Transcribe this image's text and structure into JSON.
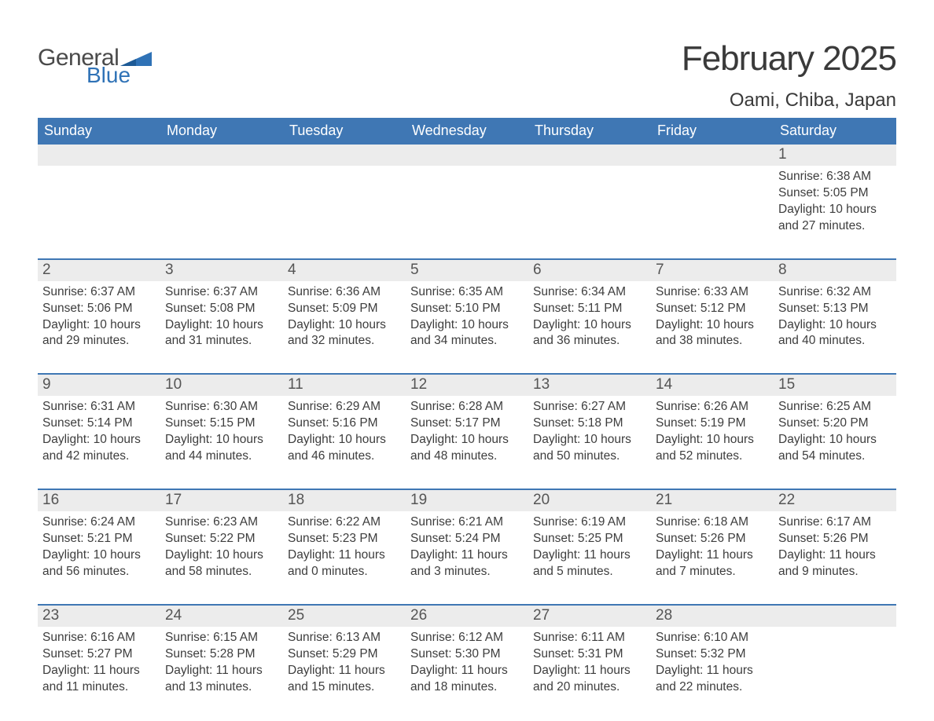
{
  "logo": {
    "general": "General",
    "blue": "Blue",
    "flag_color": "#2f72b6"
  },
  "title": "February 2025",
  "location": "Oami, Chiba, Japan",
  "colors": {
    "header_bg": "#3f77b4",
    "header_text": "#ffffff",
    "daynum_bg": "#ececec",
    "week_border": "#3f77b4",
    "text": "#3a3a3a"
  },
  "day_names": [
    "Sunday",
    "Monday",
    "Tuesday",
    "Wednesday",
    "Thursday",
    "Friday",
    "Saturday"
  ],
  "weeks": [
    [
      null,
      null,
      null,
      null,
      null,
      null,
      {
        "n": "1",
        "sunrise": "6:38 AM",
        "sunset": "5:05 PM",
        "dl1": "Daylight: 10 hours",
        "dl2": "and 27 minutes."
      }
    ],
    [
      {
        "n": "2",
        "sunrise": "6:37 AM",
        "sunset": "5:06 PM",
        "dl1": "Daylight: 10 hours",
        "dl2": "and 29 minutes."
      },
      {
        "n": "3",
        "sunrise": "6:37 AM",
        "sunset": "5:08 PM",
        "dl1": "Daylight: 10 hours",
        "dl2": "and 31 minutes."
      },
      {
        "n": "4",
        "sunrise": "6:36 AM",
        "sunset": "5:09 PM",
        "dl1": "Daylight: 10 hours",
        "dl2": "and 32 minutes."
      },
      {
        "n": "5",
        "sunrise": "6:35 AM",
        "sunset": "5:10 PM",
        "dl1": "Daylight: 10 hours",
        "dl2": "and 34 minutes."
      },
      {
        "n": "6",
        "sunrise": "6:34 AM",
        "sunset": "5:11 PM",
        "dl1": "Daylight: 10 hours",
        "dl2": "and 36 minutes."
      },
      {
        "n": "7",
        "sunrise": "6:33 AM",
        "sunset": "5:12 PM",
        "dl1": "Daylight: 10 hours",
        "dl2": "and 38 minutes."
      },
      {
        "n": "8",
        "sunrise": "6:32 AM",
        "sunset": "5:13 PM",
        "dl1": "Daylight: 10 hours",
        "dl2": "and 40 minutes."
      }
    ],
    [
      {
        "n": "9",
        "sunrise": "6:31 AM",
        "sunset": "5:14 PM",
        "dl1": "Daylight: 10 hours",
        "dl2": "and 42 minutes."
      },
      {
        "n": "10",
        "sunrise": "6:30 AM",
        "sunset": "5:15 PM",
        "dl1": "Daylight: 10 hours",
        "dl2": "and 44 minutes."
      },
      {
        "n": "11",
        "sunrise": "6:29 AM",
        "sunset": "5:16 PM",
        "dl1": "Daylight: 10 hours",
        "dl2": "and 46 minutes."
      },
      {
        "n": "12",
        "sunrise": "6:28 AM",
        "sunset": "5:17 PM",
        "dl1": "Daylight: 10 hours",
        "dl2": "and 48 minutes."
      },
      {
        "n": "13",
        "sunrise": "6:27 AM",
        "sunset": "5:18 PM",
        "dl1": "Daylight: 10 hours",
        "dl2": "and 50 minutes."
      },
      {
        "n": "14",
        "sunrise": "6:26 AM",
        "sunset": "5:19 PM",
        "dl1": "Daylight: 10 hours",
        "dl2": "and 52 minutes."
      },
      {
        "n": "15",
        "sunrise": "6:25 AM",
        "sunset": "5:20 PM",
        "dl1": "Daylight: 10 hours",
        "dl2": "and 54 minutes."
      }
    ],
    [
      {
        "n": "16",
        "sunrise": "6:24 AM",
        "sunset": "5:21 PM",
        "dl1": "Daylight: 10 hours",
        "dl2": "and 56 minutes."
      },
      {
        "n": "17",
        "sunrise": "6:23 AM",
        "sunset": "5:22 PM",
        "dl1": "Daylight: 10 hours",
        "dl2": "and 58 minutes."
      },
      {
        "n": "18",
        "sunrise": "6:22 AM",
        "sunset": "5:23 PM",
        "dl1": "Daylight: 11 hours",
        "dl2": "and 0 minutes."
      },
      {
        "n": "19",
        "sunrise": "6:21 AM",
        "sunset": "5:24 PM",
        "dl1": "Daylight: 11 hours",
        "dl2": "and 3 minutes."
      },
      {
        "n": "20",
        "sunrise": "6:19 AM",
        "sunset": "5:25 PM",
        "dl1": "Daylight: 11 hours",
        "dl2": "and 5 minutes."
      },
      {
        "n": "21",
        "sunrise": "6:18 AM",
        "sunset": "5:26 PM",
        "dl1": "Daylight: 11 hours",
        "dl2": "and 7 minutes."
      },
      {
        "n": "22",
        "sunrise": "6:17 AM",
        "sunset": "5:26 PM",
        "dl1": "Daylight: 11 hours",
        "dl2": "and 9 minutes."
      }
    ],
    [
      {
        "n": "23",
        "sunrise": "6:16 AM",
        "sunset": "5:27 PM",
        "dl1": "Daylight: 11 hours",
        "dl2": "and 11 minutes."
      },
      {
        "n": "24",
        "sunrise": "6:15 AM",
        "sunset": "5:28 PM",
        "dl1": "Daylight: 11 hours",
        "dl2": "and 13 minutes."
      },
      {
        "n": "25",
        "sunrise": "6:13 AM",
        "sunset": "5:29 PM",
        "dl1": "Daylight: 11 hours",
        "dl2": "and 15 minutes."
      },
      {
        "n": "26",
        "sunrise": "6:12 AM",
        "sunset": "5:30 PM",
        "dl1": "Daylight: 11 hours",
        "dl2": "and 18 minutes."
      },
      {
        "n": "27",
        "sunrise": "6:11 AM",
        "sunset": "5:31 PM",
        "dl1": "Daylight: 11 hours",
        "dl2": "and 20 minutes."
      },
      {
        "n": "28",
        "sunrise": "6:10 AM",
        "sunset": "5:32 PM",
        "dl1": "Daylight: 11 hours",
        "dl2": "and 22 minutes."
      },
      null
    ]
  ],
  "labels": {
    "sunrise": "Sunrise: ",
    "sunset": "Sunset: "
  }
}
